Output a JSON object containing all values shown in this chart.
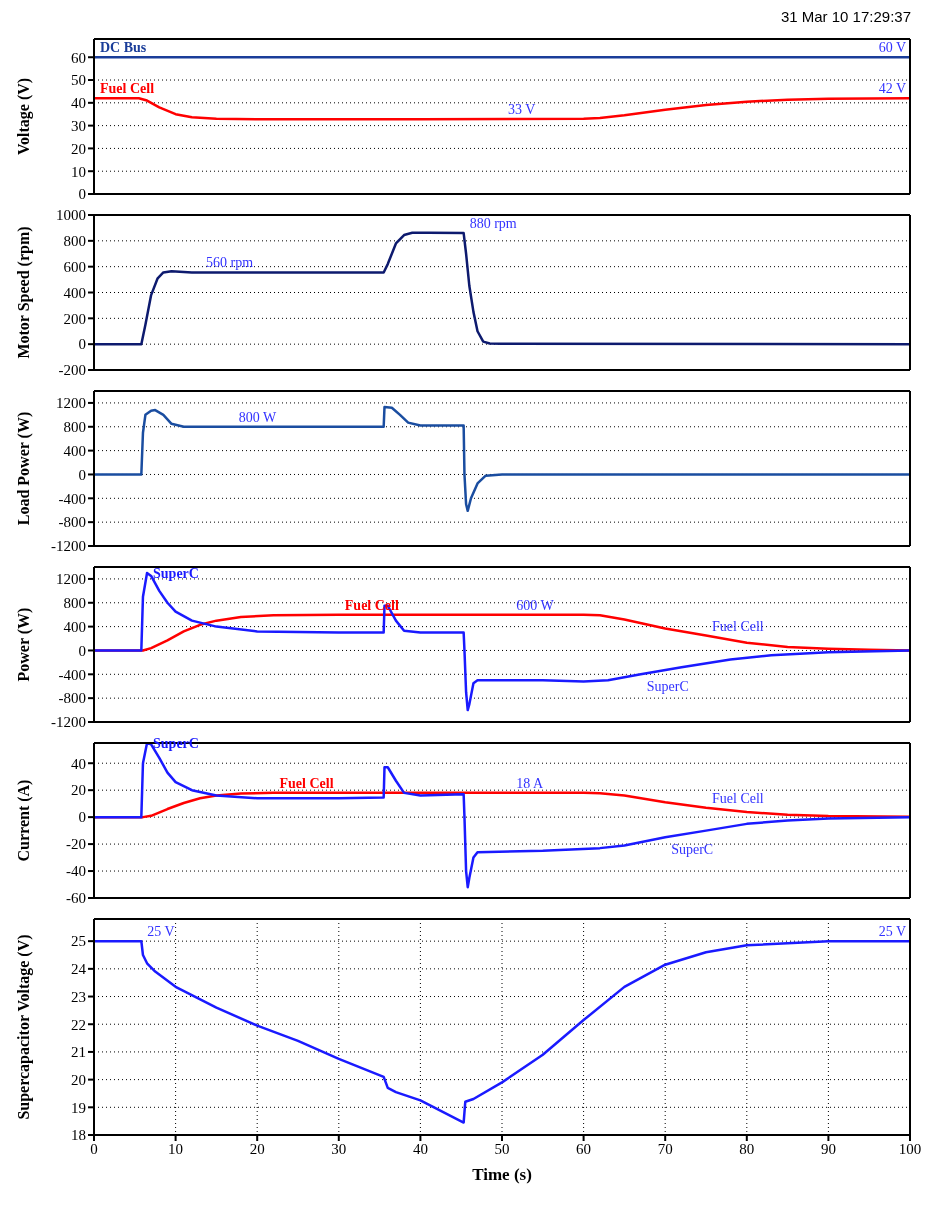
{
  "chart_data": [
    {
      "type": "line",
      "ylabel": "Voltage (V)",
      "annotations": [
        "31 Mar 10 17:29:37",
        {
          "text": "60 V",
          "x": 100,
          "y": 60
        },
        {
          "text": "42 V",
          "x": 100,
          "y": 42
        },
        {
          "text": "33 V",
          "x": 50,
          "y": 33
        }
      ],
      "xlim": [
        0,
        100
      ],
      "xticks": [
        0,
        10,
        20,
        30,
        40,
        50,
        60,
        70,
        80,
        90,
        100
      ],
      "ylim": [
        0,
        68
      ],
      "yticks": [
        0,
        10,
        20,
        30,
        40,
        50,
        60
      ],
      "grid": true,
      "tick_labels": "y",
      "series": [
        {
          "name": "DC Bus",
          "color": "#1a3d99",
          "x": [
            0,
            100
          ],
          "values": [
            60,
            60
          ]
        },
        {
          "name": "Fuel Cell",
          "color": "#ff0000",
          "x": [
            0,
            5.5,
            6.5,
            8,
            10,
            12,
            15,
            20,
            40,
            60,
            62,
            65,
            70,
            75,
            80,
            85,
            90,
            100
          ],
          "values": [
            42,
            42,
            41,
            38,
            35,
            33.7,
            33,
            32.8,
            32.8,
            33,
            33.3,
            34.5,
            37,
            39,
            40.5,
            41.4,
            41.8,
            42
          ]
        }
      ]
    },
    {
      "type": "line",
      "ylabel": "Motor Speed (rpm)",
      "annotations": [
        {
          "text": "560 rpm",
          "x": 13,
          "y": 555
        },
        {
          "text": "880 rpm",
          "x": 45.3,
          "y": 860
        }
      ],
      "xlim": [
        0,
        100
      ],
      "xticks": [
        0,
        10,
        20,
        30,
        40,
        50,
        60,
        70,
        80,
        90,
        100
      ],
      "ylim": [
        -200,
        1000
      ],
      "yticks": [
        -200,
        0,
        200,
        400,
        600,
        800,
        1000
      ],
      "grid": true,
      "tick_labels": "y",
      "series": [
        {
          "color": "#0d1a6e",
          "x": [
            0,
            5.8,
            6.3,
            7,
            7.8,
            8.5,
            9.5,
            12,
            35.5,
            36,
            37,
            38,
            39,
            41,
            45.3,
            45.6,
            46,
            46.5,
            47,
            47.7,
            48.5,
            50,
            100
          ],
          "values": [
            0,
            0,
            150,
            380,
            510,
            555,
            565,
            555,
            555,
            620,
            780,
            845,
            862,
            862,
            860,
            700,
            450,
            250,
            100,
            20,
            5,
            3,
            0
          ]
        }
      ]
    },
    {
      "type": "line",
      "ylabel": "Load Power (W)",
      "annotations": [
        {
          "text": "800 W",
          "x": 17,
          "y": 800
        }
      ],
      "xlim": [
        0,
        100
      ],
      "xticks": [
        0,
        10,
        20,
        30,
        40,
        50,
        60,
        70,
        80,
        90,
        100
      ],
      "ylim": [
        -1200,
        1400
      ],
      "yticks": [
        -1200,
        -800,
        -400,
        0,
        400,
        800,
        1200
      ],
      "grid": true,
      "tick_labels": "y",
      "series": [
        {
          "color": "#1a4da0",
          "x": [
            0,
            5.8,
            6,
            6.3,
            7,
            7.5,
            8.5,
            9.5,
            11,
            20,
            35.5,
            35.6,
            36.5,
            37.5,
            38.5,
            40,
            45.3,
            45.4,
            45.6,
            45.8,
            46.2,
            47,
            48,
            50,
            100
          ],
          "values": [
            0,
            0,
            700,
            1000,
            1070,
            1080,
            1000,
            850,
            800,
            800,
            800,
            1130,
            1120,
            1000,
            870,
            820,
            820,
            0,
            -500,
            -610,
            -400,
            -150,
            -20,
            0,
            0
          ]
        }
      ]
    },
    {
      "type": "line",
      "ylabel": "Power (W)",
      "annotations": [
        {
          "text": "600 W",
          "x": 51,
          "y": 600
        },
        {
          "text": "Fuel Cell",
          "x": 75,
          "y": 250
        },
        {
          "text": "SuperC",
          "x": 67,
          "y": -400
        }
      ],
      "xlim": [
        0,
        100
      ],
      "xticks": [
        0,
        10,
        20,
        30,
        40,
        50,
        60,
        70,
        80,
        90,
        100
      ],
      "ylim": [
        -1200,
        1400
      ],
      "yticks": [
        -1200,
        -800,
        -400,
        0,
        400,
        800,
        1200
      ],
      "grid": true,
      "tick_labels": "y",
      "series": [
        {
          "name": "Fuel Cell",
          "color": "#ff0000",
          "x": [
            0,
            6,
            7,
            9,
            11,
            13,
            15,
            18,
            22,
            30,
            60,
            62,
            65,
            70,
            75,
            80,
            85,
            90,
            95,
            100
          ],
          "values": [
            0,
            0,
            40,
            170,
            320,
            430,
            500,
            560,
            590,
            600,
            600,
            590,
            520,
            370,
            250,
            130,
            60,
            30,
            10,
            0
          ]
        },
        {
          "name": "SuperC",
          "color": "#1a1aff",
          "x": [
            0,
            5.8,
            6,
            6.5,
            7,
            8,
            9,
            10,
            12,
            15,
            20,
            30,
            35.5,
            35.6,
            36,
            37,
            38,
            40,
            45.3,
            45.4,
            45.6,
            45.8,
            46,
            46.5,
            47,
            55,
            60,
            63,
            67,
            72,
            78,
            83,
            90,
            100
          ],
          "values": [
            0,
            0,
            900,
            1300,
            1250,
            1000,
            800,
            650,
            500,
            400,
            320,
            300,
            300,
            750,
            750,
            500,
            330,
            300,
            300,
            0,
            -700,
            -1000,
            -900,
            -550,
            -500,
            -500,
            -520,
            -500,
            -400,
            -280,
            -150,
            -80,
            -30,
            0
          ]
        }
      ]
    },
    {
      "type": "line",
      "ylabel": "Current (A)",
      "annotations": [
        {
          "text": "18 A",
          "x": 51,
          "y": 18
        },
        {
          "text": "Fuel Cell",
          "x": 75,
          "y": 7
        },
        {
          "text": "SuperC",
          "x": 70,
          "y": -15
        }
      ],
      "xlim": [
        0,
        100
      ],
      "xticks": [
        0,
        10,
        20,
        30,
        40,
        50,
        60,
        70,
        80,
        90,
        100
      ],
      "ylim": [
        -60,
        55
      ],
      "yticks": [
        -60,
        -40,
        -20,
        0,
        20,
        40
      ],
      "grid": true,
      "tick_labels": "y",
      "series": [
        {
          "name": "Fuel Cell",
          "color": "#ff0000",
          "x": [
            0,
            6,
            7,
            9,
            11,
            13,
            15,
            18,
            22,
            60,
            62,
            65,
            70,
            75,
            80,
            85,
            90,
            100
          ],
          "values": [
            0,
            0,
            1,
            6,
            10.5,
            14,
            16,
            17.5,
            18,
            18,
            17.7,
            16,
            11,
            7,
            3.8,
            1.8,
            0.8,
            0.3
          ]
        },
        {
          "name": "SuperC",
          "color": "#1a1aff",
          "x": [
            0,
            5.8,
            6,
            6.5,
            7,
            8,
            9,
            10,
            12,
            15,
            20,
            30,
            35.5,
            35.6,
            36,
            37,
            38,
            40,
            45.3,
            45.4,
            45.6,
            45.8,
            46,
            46.5,
            47,
            55,
            62,
            65,
            70,
            75,
            80,
            85,
            90,
            100
          ],
          "values": [
            0,
            0,
            40,
            55,
            54,
            44,
            33,
            26,
            20,
            16,
            14,
            14,
            14.5,
            37,
            37,
            27,
            18,
            16,
            17,
            0,
            -40,
            -52,
            -45,
            -30,
            -26,
            -25,
            -23,
            -21,
            -15,
            -10,
            -5,
            -2.5,
            -1,
            0
          ]
        }
      ]
    },
    {
      "type": "line",
      "xlabel": "Time (s)",
      "ylabel": "Supercapacitor Voltage (V)",
      "annotations": [
        {
          "text": "25 V",
          "x": 5.8,
          "y": 25
        },
        {
          "text": "25 V",
          "x": 100,
          "y": 25
        }
      ],
      "xlim": [
        0,
        100
      ],
      "xticks": [
        0,
        10,
        20,
        30,
        40,
        50,
        60,
        70,
        80,
        90,
        100
      ],
      "ylim": [
        18,
        25.8
      ],
      "yticks": [
        18,
        19,
        20,
        21,
        22,
        23,
        24,
        25
      ],
      "grid": true,
      "series": [
        {
          "color": "#1a1aff",
          "x": [
            0,
            5.8,
            6,
            6.5,
            7.5,
            10,
            15,
            20,
            25,
            30,
            35.5,
            36,
            37,
            40,
            45.3,
            45.5,
            46.5,
            50,
            55,
            60,
            65,
            70,
            75,
            80,
            90,
            100
          ],
          "values": [
            25,
            25,
            24.5,
            24.2,
            23.9,
            23.35,
            22.6,
            21.95,
            21.4,
            20.75,
            20.1,
            19.7,
            19.55,
            19.25,
            18.45,
            19.2,
            19.3,
            19.9,
            20.9,
            22.15,
            23.35,
            24.15,
            24.6,
            24.85,
            25,
            25
          ]
        }
      ]
    }
  ]
}
